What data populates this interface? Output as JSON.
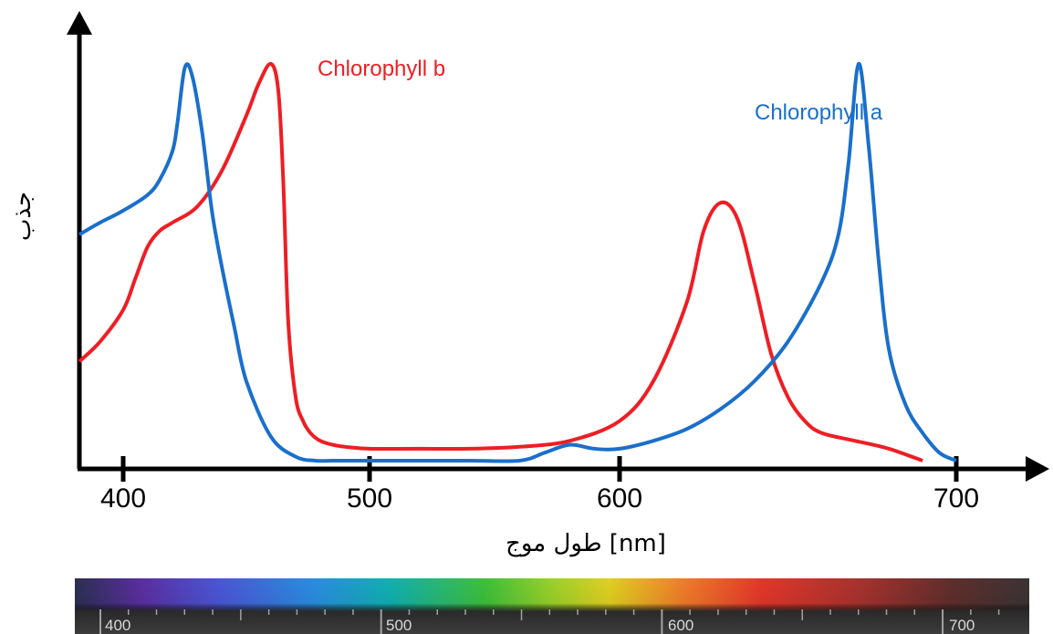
{
  "chart_data": {
    "type": "line",
    "xlabel": "[nm] طول موج",
    "ylabel": "جذب",
    "x_ticks": [
      "400",
      "500",
      "600",
      "700"
    ],
    "xlim": [
      381,
      735
    ],
    "ylim": [
      0,
      1
    ],
    "grid": false,
    "legend": "inline labels near peaks",
    "series": [
      {
        "name": "Chlorophyll a",
        "color": "#1a6fcc",
        "x": [
          381,
          390,
          400,
          410,
          415,
          420,
          422,
          425,
          428,
          432,
          436,
          440,
          445,
          450,
          460,
          470,
          478,
          485,
          500,
          520,
          540,
          560,
          570,
          580,
          590,
          600,
          610,
          620,
          630,
          640,
          650,
          660,
          665,
          668,
          671,
          674,
          677,
          680,
          685,
          690,
          695,
          700
        ],
        "y": [
          0.57,
          0.6,
          0.63,
          0.67,
          0.71,
          0.78,
          0.85,
          0.99,
          0.97,
          0.83,
          0.63,
          0.49,
          0.34,
          0.2,
          0.06,
          0.01,
          0.0,
          0.0,
          0.0,
          0.0,
          0.0,
          0.0,
          0.02,
          0.04,
          0.03,
          0.03,
          0.05,
          0.08,
          0.13,
          0.2,
          0.3,
          0.45,
          0.57,
          0.75,
          1.0,
          0.79,
          0.5,
          0.28,
          0.14,
          0.07,
          0.02,
          0.0
        ]
      },
      {
        "name": "Chlorophyll b",
        "color": "#ee1e24",
        "x": [
          381,
          390,
          400,
          405,
          410,
          415,
          420,
          430,
          440,
          450,
          455,
          460,
          463,
          465,
          467,
          470,
          473,
          476,
          480,
          485,
          490,
          500,
          520,
          540,
          560,
          580,
          600,
          610,
          620,
          625,
          630,
          635,
          640,
          645,
          650,
          655,
          660,
          670,
          680,
          690
        ],
        "y": [
          0.25,
          0.3,
          0.38,
          0.46,
          0.54,
          0.58,
          0.6,
          0.64,
          0.73,
          0.87,
          0.95,
          1.0,
          0.93,
          0.7,
          0.35,
          0.16,
          0.1,
          0.07,
          0.05,
          0.04,
          0.035,
          0.03,
          0.03,
          0.03,
          0.035,
          0.05,
          0.1,
          0.2,
          0.4,
          0.58,
          0.65,
          0.61,
          0.45,
          0.27,
          0.16,
          0.1,
          0.07,
          0.05,
          0.03,
          0.0
        ]
      }
    ]
  },
  "spectrum_bar": {
    "labels": [
      "400",
      "500",
      "600",
      "700"
    ]
  }
}
